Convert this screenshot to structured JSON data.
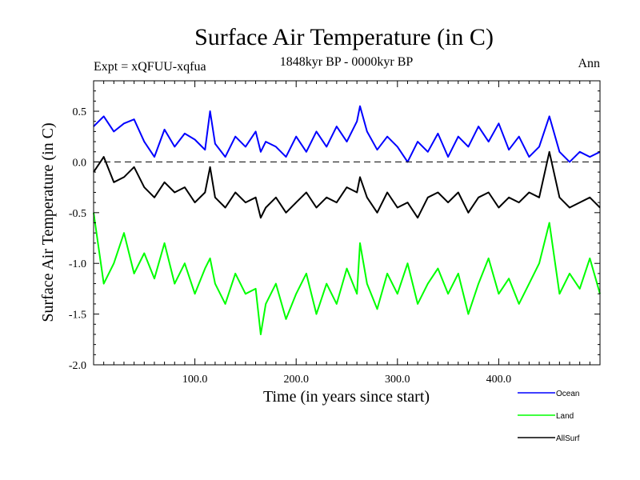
{
  "chart_data": {
    "type": "line",
    "title": "Surface Air Temperature (in C)",
    "subtitle": "1848kyr BP - 0000kyr BP",
    "experiment_label": "Expt = xQFUU-xqfua",
    "season_label": "Ann",
    "xlabel": "Time (in years since start)",
    "ylabel": "Surface Air Temperature (in C)",
    "xlim": [
      0,
      500
    ],
    "ylim": [
      -2.0,
      0.8
    ],
    "x_ticks": [
      {
        "value": 100,
        "label": "100.0"
      },
      {
        "value": 200,
        "label": "200.0"
      },
      {
        "value": 300,
        "label": "300.0"
      },
      {
        "value": 400,
        "label": "400.0"
      }
    ],
    "y_ticks": [
      {
        "value": 0.5,
        "label": "0.5"
      },
      {
        "value": 0.0,
        "label": "0.0"
      },
      {
        "value": -0.5,
        "label": "-0.5"
      },
      {
        "value": -1.0,
        "label": "-1.0"
      },
      {
        "value": -1.5,
        "label": "-1.5"
      },
      {
        "value": -2.0,
        "label": "-2.0"
      }
    ],
    "reference_line": 0.0,
    "x": [
      0,
      10,
      20,
      30,
      40,
      50,
      60,
      70,
      80,
      90,
      100,
      110,
      115,
      120,
      130,
      140,
      150,
      160,
      165,
      170,
      180,
      190,
      200,
      210,
      220,
      230,
      240,
      250,
      260,
      263,
      270,
      280,
      290,
      300,
      310,
      320,
      330,
      340,
      350,
      360,
      370,
      380,
      390,
      400,
      410,
      420,
      430,
      440,
      450,
      460,
      470,
      480,
      490,
      500
    ],
    "series": [
      {
        "name": "Ocean",
        "color": "#0000ff",
        "values": [
          0.35,
          0.45,
          0.3,
          0.38,
          0.42,
          0.2,
          0.05,
          0.32,
          0.15,
          0.28,
          0.22,
          0.12,
          0.5,
          0.18,
          0.05,
          0.25,
          0.15,
          0.3,
          0.1,
          0.2,
          0.15,
          0.05,
          0.25,
          0.1,
          0.3,
          0.15,
          0.35,
          0.2,
          0.4,
          0.55,
          0.3,
          0.12,
          0.25,
          0.15,
          0.0,
          0.2,
          0.1,
          0.28,
          0.05,
          0.25,
          0.15,
          0.35,
          0.2,
          0.38,
          0.12,
          0.25,
          0.05,
          0.15,
          0.45,
          0.1,
          0.0,
          0.1,
          0.05,
          0.1
        ]
      },
      {
        "name": "Land",
        "color": "#00ff00",
        "values": [
          -0.5,
          -1.2,
          -1.0,
          -0.7,
          -1.1,
          -0.9,
          -1.15,
          -0.8,
          -1.2,
          -1.0,
          -1.3,
          -1.05,
          -0.95,
          -1.2,
          -1.4,
          -1.1,
          -1.3,
          -1.25,
          -1.7,
          -1.4,
          -1.2,
          -1.55,
          -1.3,
          -1.1,
          -1.5,
          -1.2,
          -1.4,
          -1.05,
          -1.3,
          -0.8,
          -1.2,
          -1.45,
          -1.1,
          -1.3,
          -1.0,
          -1.4,
          -1.2,
          -1.05,
          -1.3,
          -1.1,
          -1.5,
          -1.2,
          -0.95,
          -1.3,
          -1.15,
          -1.4,
          -1.2,
          -1.0,
          -0.6,
          -1.3,
          -1.1,
          -1.25,
          -0.95,
          -1.3
        ]
      },
      {
        "name": "AllSurf",
        "color": "#000000",
        "values": [
          -0.1,
          0.05,
          -0.2,
          -0.15,
          -0.05,
          -0.25,
          -0.35,
          -0.2,
          -0.3,
          -0.25,
          -0.4,
          -0.3,
          -0.05,
          -0.35,
          -0.45,
          -0.3,
          -0.4,
          -0.35,
          -0.55,
          -0.45,
          -0.35,
          -0.5,
          -0.4,
          -0.3,
          -0.45,
          -0.35,
          -0.4,
          -0.25,
          -0.3,
          -0.15,
          -0.35,
          -0.5,
          -0.3,
          -0.45,
          -0.4,
          -0.55,
          -0.35,
          -0.3,
          -0.4,
          -0.3,
          -0.5,
          -0.35,
          -0.3,
          -0.45,
          -0.35,
          -0.4,
          -0.3,
          -0.35,
          0.1,
          -0.35,
          -0.45,
          -0.4,
          -0.35,
          -0.45
        ]
      }
    ],
    "legend_position": "bottom-right"
  }
}
